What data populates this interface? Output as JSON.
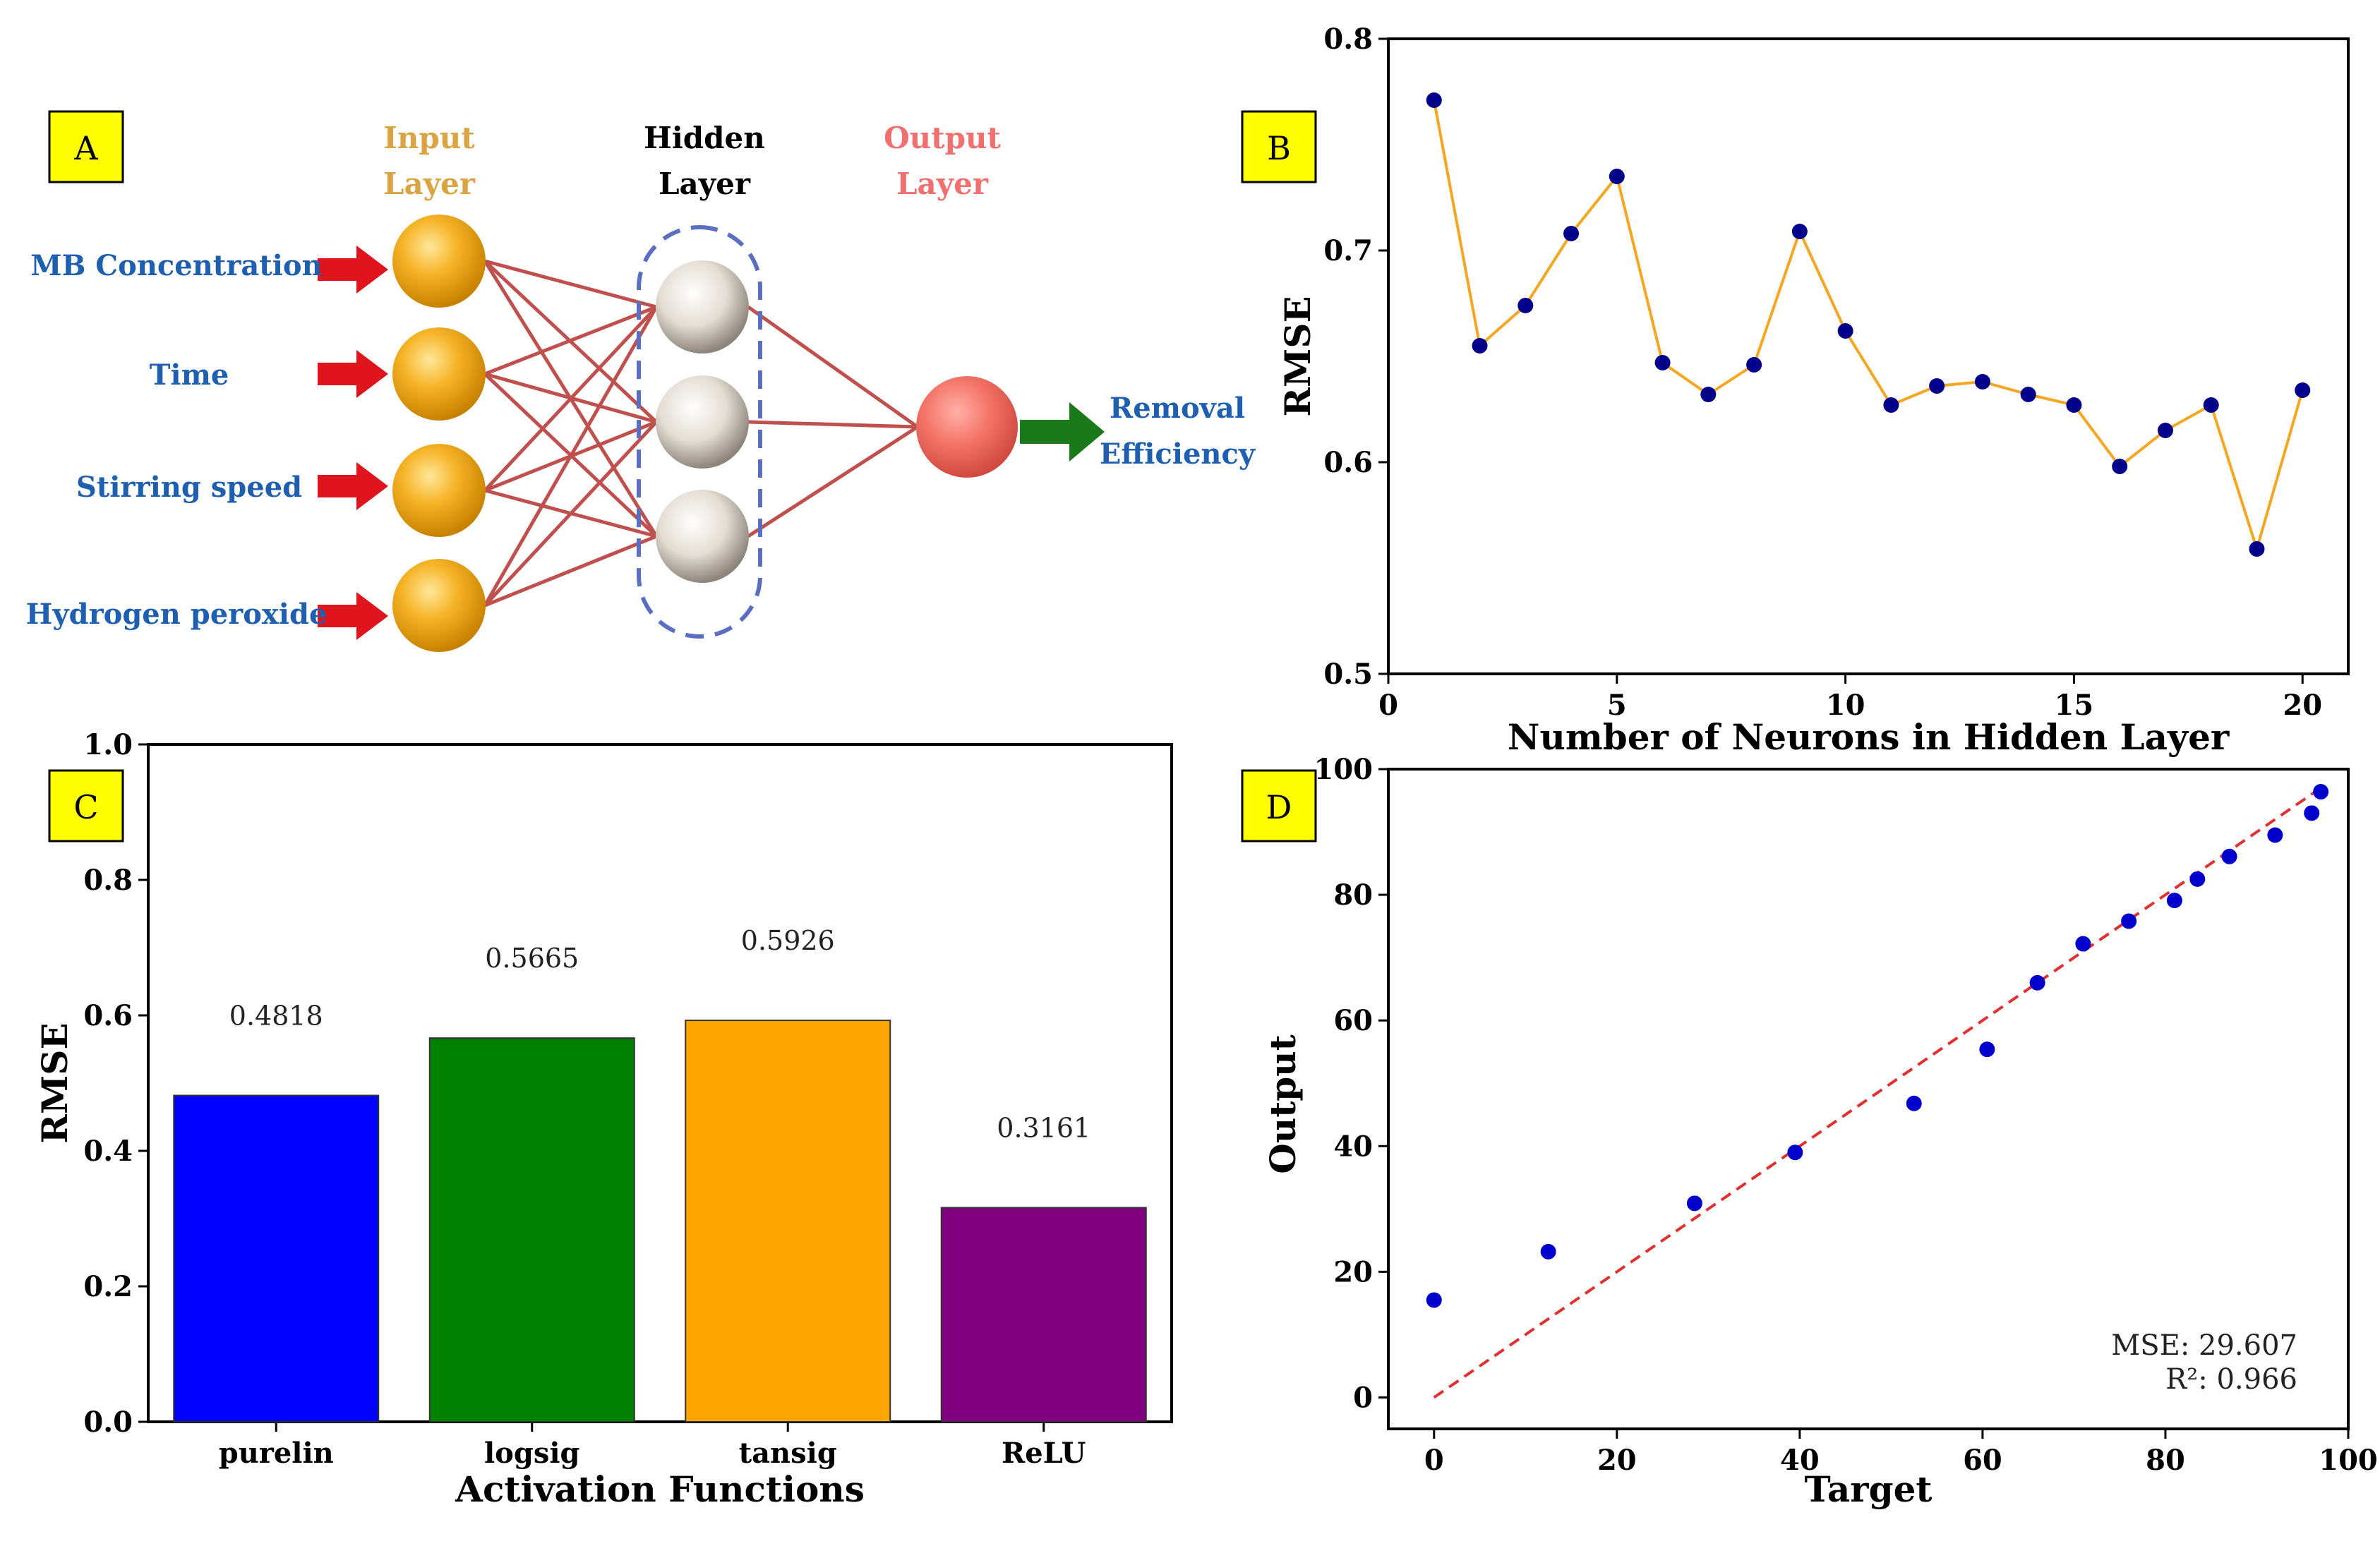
{
  "panel_labels": {
    "a": "A",
    "b": "B",
    "c": "C",
    "d": "D"
  },
  "network": {
    "layer_titles": {
      "input": [
        "Input",
        "Layer"
      ],
      "hidden": [
        "Hidden",
        "Layer"
      ],
      "output": [
        "Output",
        "Layer"
      ]
    },
    "inputs": [
      "MB Concentration",
      "Time",
      "Stirring speed",
      "Hydrogen peroxide"
    ],
    "output_label": [
      "Removal",
      "Efficiency"
    ],
    "colors": {
      "input_title": "#d9a441",
      "hidden_title": "#000000",
      "output_title": "#f07070",
      "label_blue": "#1f5fb0",
      "connection": "#c0504d",
      "input_arrow": "#e0141c",
      "output_arrow": "#1a7a1a",
      "dash_outline": "#5a6fc0"
    }
  },
  "chart_data": [
    {
      "id": "B",
      "type": "line",
      "title": "",
      "xlabel": "Number of Neurons in Hidden Layer",
      "ylabel": "RMSE",
      "x": [
        1,
        2,
        3,
        4,
        5,
        6,
        7,
        8,
        9,
        10,
        11,
        12,
        13,
        14,
        15,
        16,
        17,
        18,
        19,
        20
      ],
      "y": [
        0.771,
        0.655,
        0.674,
        0.708,
        0.735,
        0.647,
        0.632,
        0.646,
        0.709,
        0.662,
        0.627,
        0.636,
        0.638,
        0.632,
        0.627,
        0.598,
        0.615,
        0.627,
        0.559,
        0.634
      ],
      "xlim": [
        0,
        21
      ],
      "ylim": [
        0.5,
        0.8
      ],
      "xticks": [
        0,
        5,
        10,
        15,
        20
      ],
      "yticks": [
        0.5,
        0.6,
        0.7,
        0.8
      ],
      "line_color": "#f5a623",
      "marker_color": "#00008b",
      "grid": false
    },
    {
      "id": "C",
      "type": "bar",
      "title": "",
      "xlabel": "Activation Functions",
      "ylabel": "RMSE",
      "categories": [
        "purelin",
        "logsig",
        "tansig",
        "ReLU"
      ],
      "values": [
        0.4818,
        0.5665,
        0.5926,
        0.3161
      ],
      "value_labels": [
        "0.4818",
        "0.5665",
        "0.5926",
        "0.3161"
      ],
      "colors": [
        "#0000ff",
        "#008000",
        "#ffa500",
        "#800080"
      ],
      "ylim": [
        0.0,
        1.0
      ],
      "yticks": [
        "0.0",
        "0.2",
        "0.4",
        "0.6",
        "0.8",
        "1.0"
      ],
      "grid": false
    },
    {
      "id": "D",
      "type": "scatter",
      "title": "",
      "xlabel": "Target",
      "ylabel": "Output",
      "x": [
        0,
        12.5,
        28.5,
        39.5,
        52.5,
        60.5,
        66,
        71,
        76,
        81,
        83.5,
        87,
        92,
        96,
        97
      ],
      "y": [
        15.5,
        23.2,
        30.9,
        39,
        46.8,
        55.4,
        66,
        72.2,
        75.8,
        79.1,
        82.5,
        86.1,
        89.5,
        93,
        96.4
      ],
      "reference_line": {
        "from": [
          0,
          0
        ],
        "to": [
          97,
          97
        ],
        "color": "#e03030",
        "style": "dashed"
      },
      "xlim": [
        -5,
        100
      ],
      "ylim": [
        -5,
        100
      ],
      "xticks": [
        0,
        20,
        40,
        60,
        80,
        100
      ],
      "yticks": [
        0,
        20,
        40,
        60,
        80,
        100
      ],
      "marker_color": "#0000cd",
      "annotations": [
        "MSE: 29.607",
        "R²: 0.966"
      ],
      "grid": false
    }
  ]
}
